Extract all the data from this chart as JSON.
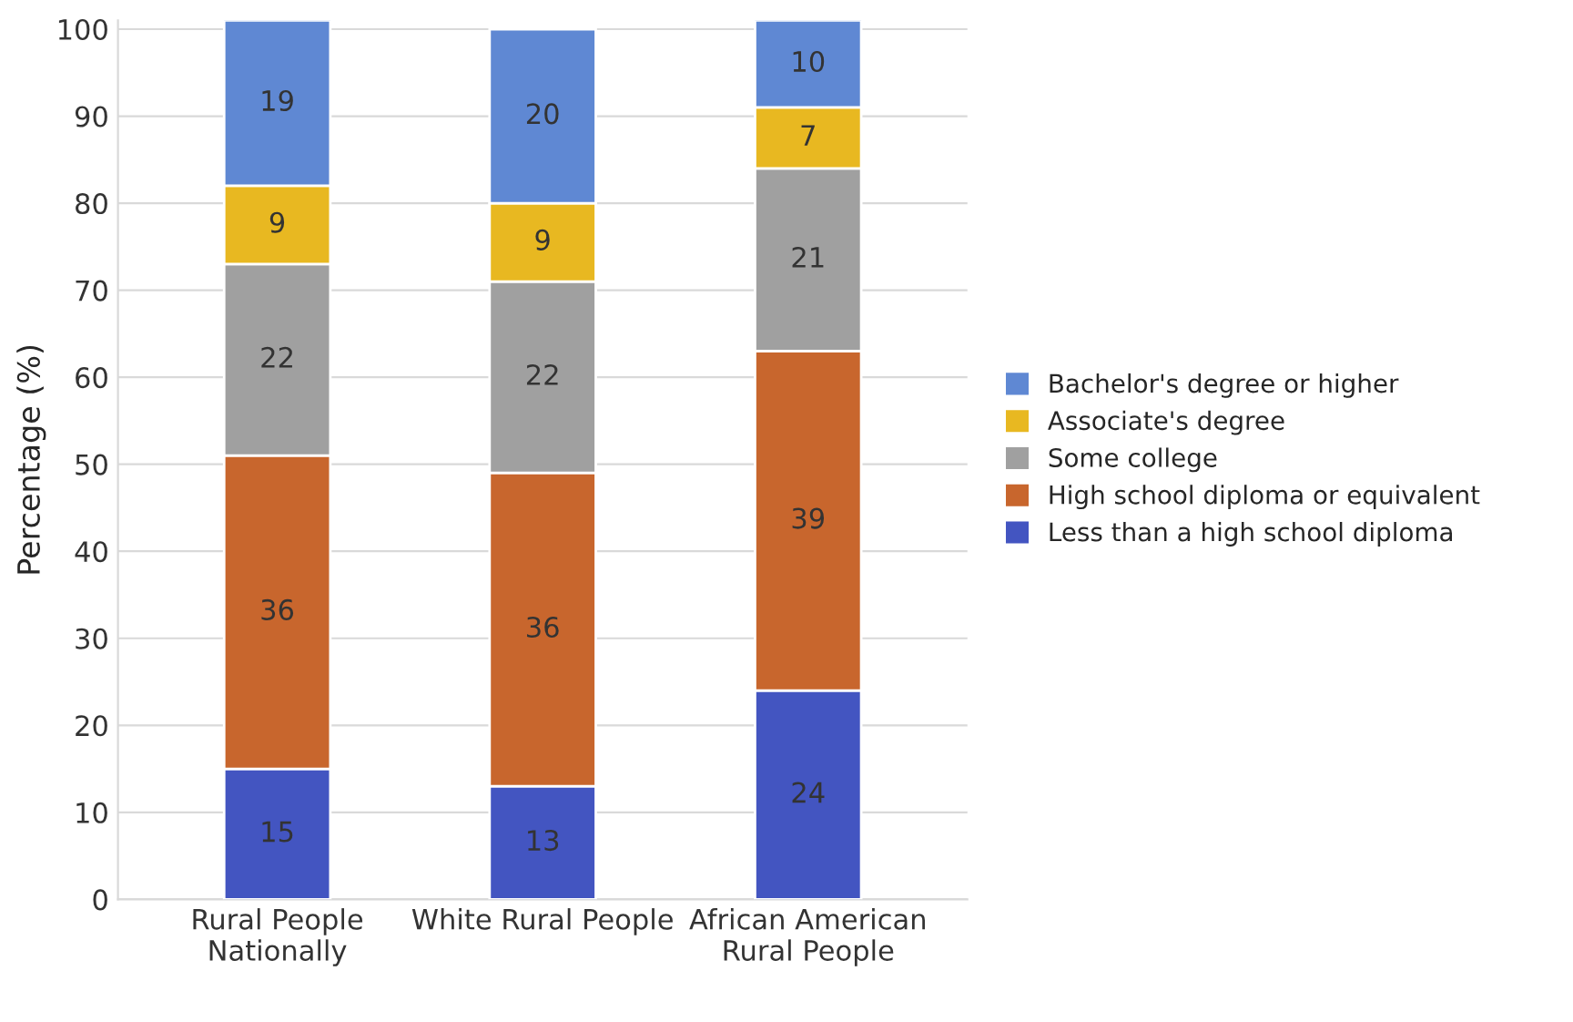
{
  "chart_data": {
    "type": "bar",
    "stacked": true,
    "ylabel": "Percentage (%)",
    "categories": [
      "Rural People\nNationally",
      "White Rural People",
      "African American\nRural People"
    ],
    "series": [
      {
        "name": "Less than a high school diploma",
        "color": "#4355c1",
        "values": [
          15,
          13,
          24
        ]
      },
      {
        "name": "High school diploma or equivalent",
        "color": "#c8662d",
        "values": [
          36,
          36,
          39
        ]
      },
      {
        "name": "Some college",
        "color": "#a0a0a0",
        "values": [
          22,
          22,
          21
        ]
      },
      {
        "name": "Associate's degree",
        "color": "#e8b821",
        "values": [
          9,
          9,
          7
        ]
      },
      {
        "name": "Bachelor's degree or higher",
        "color": "#5f88d3",
        "values": [
          19,
          20,
          10
        ]
      }
    ],
    "ylim": [
      0,
      101
    ],
    "yticks": [
      0,
      10,
      20,
      30,
      40,
      50,
      60,
      70,
      80,
      90,
      100
    ],
    "grid": "y",
    "legend": "right",
    "data_labels": true
  }
}
